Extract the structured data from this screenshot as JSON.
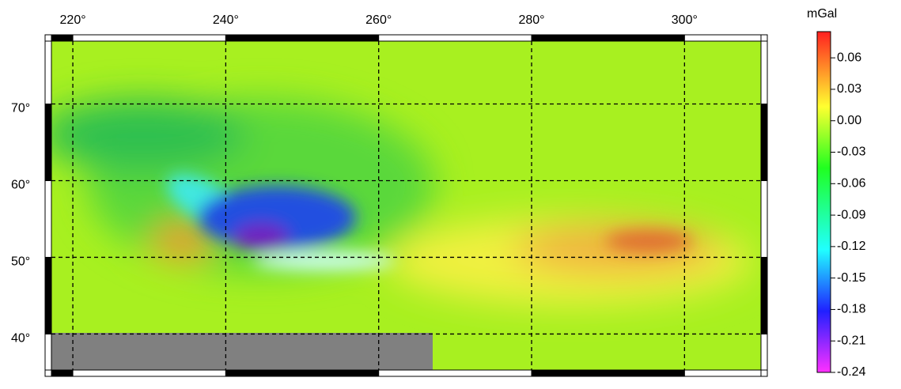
{
  "chart_data": {
    "type": "map",
    "colorbar_label": "mGal",
    "xlim": [
      217.2,
      310
    ],
    "xticks": [
      {
        "value": 220,
        "label": "220°"
      },
      {
        "value": 240,
        "label": "240°"
      },
      {
        "value": 260,
        "label": "260°"
      },
      {
        "value": 280,
        "label": "280°"
      },
      {
        "value": 300,
        "label": "300°"
      }
    ],
    "ylim": [
      35.3,
      78.2
    ],
    "yticks": [
      {
        "value": 40,
        "label": "40°"
      },
      {
        "value": 50,
        "label": "50°"
      },
      {
        "value": 60,
        "label": "60°"
      },
      {
        "value": 70,
        "label": "70°"
      }
    ],
    "clim": [
      -0.24,
      0.085
    ],
    "cticks": [
      0.06,
      0.03,
      {
        "value": 0,
        "label": "0.00"
      },
      -0.03,
      -0.06,
      -0.09,
      -0.12,
      -0.15,
      -0.18,
      -0.21,
      -0.24
    ],
    "grid": true
  }
}
